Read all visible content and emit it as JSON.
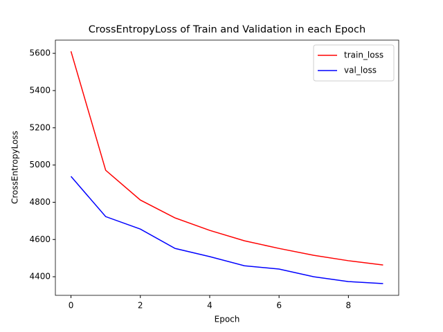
{
  "chart_data": {
    "type": "line",
    "title": "CrossEntropyLoss of Train and Validation in each Epoch",
    "x_label": "Epoch",
    "y_label": "CrossEntropyLoss",
    "x": [
      0,
      1,
      2,
      3,
      4,
      5,
      6,
      7,
      8,
      9
    ],
    "series": [
      {
        "name": "train_loss",
        "color": "#ff0000",
        "values": [
          5611,
          4972,
          4812,
          4716,
          4649,
          4593,
          4552,
          4515,
          4486,
          4463
        ]
      },
      {
        "name": "val_loss",
        "color": "#0000ff",
        "values": [
          4939,
          4723,
          4656,
          4552,
          4508,
          4459,
          4441,
          4400,
          4374,
          4363
        ]
      }
    ],
    "xlim": [
      -0.45,
      9.45
    ],
    "xticks": [
      0,
      2,
      4,
      6,
      8
    ],
    "ylim": [
      4300,
      5671
    ],
    "yticks": [
      4400,
      4600,
      4800,
      5000,
      5200,
      5400,
      5600
    ],
    "legend": "upper right"
  }
}
